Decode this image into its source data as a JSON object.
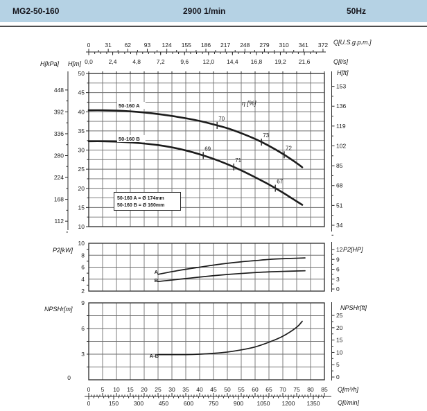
{
  "header": {
    "model": "MG2-50-160",
    "speed": "2900 1/min",
    "frequency": "50Hz"
  },
  "colors": {
    "header_bg": "#b5d2e4",
    "grid": "#6e6e6e",
    "axis": "#2a2a2a",
    "curve": "#1c1c1c",
    "text": "#1a1a1a"
  },
  "labels": {
    "h_kpa": "H[kPa]",
    "h_m": "H[m]",
    "h_ft": "H[ft]",
    "q_usgpm": "Q[U.S.g.p.m.]",
    "q_ls": "Q[l/s]",
    "p2_kw": "P2[kW]",
    "p2_hp": "P2[HP]",
    "npshr_m": "NPSHr[m]",
    "npshr_ft": "NPSHr[ft]",
    "q_m3h": "Q[m³/h]",
    "q_lmin": "Q[l/min]",
    "eta": "η [%]"
  },
  "chart_data": [
    {
      "type": "line",
      "name": "head-curve-chart",
      "x_unit": "m3/h",
      "x_range": [
        0,
        85
      ],
      "x_grid_step": 5,
      "y_unit": "m",
      "y_range": [
        10,
        50
      ],
      "y_grid_step": 2.5,
      "y_ticks_m": [
        50,
        45,
        40,
        35,
        30,
        25,
        20,
        15,
        10
      ],
      "y_ticks_kpa": [
        448,
        392,
        336,
        280,
        224,
        168,
        112
      ],
      "y_ticks_ft": [
        153,
        136,
        119,
        102,
        85,
        68,
        51,
        34
      ],
      "x_ticks_usgpm": [
        0,
        31,
        62,
        93,
        124,
        155,
        186,
        217,
        248,
        279,
        310,
        341,
        372
      ],
      "x_ticks_ls": {
        "values": [
          0,
          2.4,
          4.8,
          7.2,
          9.6,
          12.0,
          14.4,
          16.8,
          19.2,
          21.6
        ],
        "labels": [
          "0,0",
          "2,4",
          "4,8",
          "7,2",
          "9,6",
          "12,0",
          "14,4",
          "16,8",
          "19,2",
          "21,6"
        ]
      },
      "series": [
        {
          "name": "50-160 A",
          "points": [
            [
              0,
              40.4
            ],
            [
              5,
              40.4
            ],
            [
              10,
              40.3
            ],
            [
              15,
              40.1
            ],
            [
              20,
              39.8
            ],
            [
              25,
              39.4
            ],
            [
              30,
              38.9
            ],
            [
              35,
              38.3
            ],
            [
              40,
              37.6
            ],
            [
              45,
              36.7
            ],
            [
              50,
              35.7
            ],
            [
              55,
              34.4
            ],
            [
              60,
              32.9
            ],
            [
              65,
              31.1
            ],
            [
              70,
              29.0
            ],
            [
              75,
              26.6
            ],
            [
              77,
              25.5
            ]
          ]
        },
        {
          "name": "50-160 B",
          "points": [
            [
              0,
              32.3
            ],
            [
              5,
              32.3
            ],
            [
              10,
              32.2
            ],
            [
              15,
              32.0
            ],
            [
              20,
              31.7
            ],
            [
              25,
              31.3
            ],
            [
              30,
              30.7
            ],
            [
              35,
              29.9
            ],
            [
              40,
              28.9
            ],
            [
              45,
              27.7
            ],
            [
              50,
              26.3
            ],
            [
              55,
              24.7
            ],
            [
              60,
              22.9
            ],
            [
              65,
              21.0
            ],
            [
              70,
              18.9
            ],
            [
              75,
              16.6
            ],
            [
              77,
              15.7
            ]
          ]
        }
      ],
      "efficiency_marks": [
        {
          "series": 0,
          "q": 46.3,
          "value": "70"
        },
        {
          "series": 0,
          "q": 62.3,
          "value": "73"
        },
        {
          "series": 0,
          "q": 70.5,
          "value": "72"
        },
        {
          "series": 1,
          "q": 41.3,
          "value": "69"
        },
        {
          "series": 1,
          "q": 52.3,
          "value": "71"
        },
        {
          "series": 1,
          "q": 67.3,
          "value": "67"
        }
      ],
      "legend": [
        "50-160 A = Ø 174mm",
        "50-160 B = Ø 160mm"
      ]
    },
    {
      "type": "line",
      "name": "p2-power-chart",
      "x_unit": "m3/h",
      "x_range": [
        0,
        85
      ],
      "x_grid_step": 5,
      "y_unit": "kW",
      "y_range": [
        2,
        10
      ],
      "y_grid_step": 2,
      "y_ticks_kw": [
        10,
        8,
        6,
        4,
        2
      ],
      "y_ticks_hp": [
        12,
        9,
        6,
        3,
        0
      ],
      "series": [
        {
          "name": "A",
          "points": [
            [
              25,
              4.8
            ],
            [
              30,
              5.25
            ],
            [
              35,
              5.65
            ],
            [
              40,
              6.0
            ],
            [
              45,
              6.35
            ],
            [
              50,
              6.65
            ],
            [
              55,
              6.9
            ],
            [
              60,
              7.1
            ],
            [
              65,
              7.3
            ],
            [
              70,
              7.42
            ],
            [
              75,
              7.5
            ],
            [
              78,
              7.55
            ]
          ]
        },
        {
          "name": "B",
          "points": [
            [
              25,
              3.6
            ],
            [
              30,
              3.85
            ],
            [
              35,
              4.1
            ],
            [
              40,
              4.35
            ],
            [
              45,
              4.58
            ],
            [
              50,
              4.78
            ],
            [
              55,
              4.95
            ],
            [
              60,
              5.1
            ],
            [
              65,
              5.22
            ],
            [
              70,
              5.3
            ],
            [
              75,
              5.36
            ],
            [
              78,
              5.4
            ]
          ]
        }
      ]
    },
    {
      "type": "line",
      "name": "npsh-chart",
      "x_unit": "m3/h",
      "x_range": [
        0,
        85
      ],
      "x_grid_step": 5,
      "y_unit": "m",
      "y_range": [
        0,
        9
      ],
      "y_grid_step": 1.5,
      "y_ticks_m": [
        9,
        6,
        3,
        0
      ],
      "y_ticks_ft": [
        25,
        20,
        15,
        10,
        5,
        0
      ],
      "x_ticks_m3h": [
        0,
        5,
        10,
        15,
        20,
        25,
        30,
        35,
        40,
        45,
        50,
        55,
        60,
        65,
        70,
        75,
        80,
        85
      ],
      "x_ticks_lmin": [
        0,
        150,
        300,
        450,
        600,
        750,
        900,
        1050,
        1200,
        1350
      ],
      "series": [
        {
          "name": "A-B",
          "points": [
            [
              25,
              2.95
            ],
            [
              30,
              2.95
            ],
            [
              35,
              2.95
            ],
            [
              40,
              3.0
            ],
            [
              45,
              3.1
            ],
            [
              50,
              3.25
            ],
            [
              55,
              3.5
            ],
            [
              60,
              3.85
            ],
            [
              65,
              4.4
            ],
            [
              70,
              5.1
            ],
            [
              75,
              6.15
            ],
            [
              77,
              6.85
            ]
          ]
        }
      ]
    }
  ]
}
